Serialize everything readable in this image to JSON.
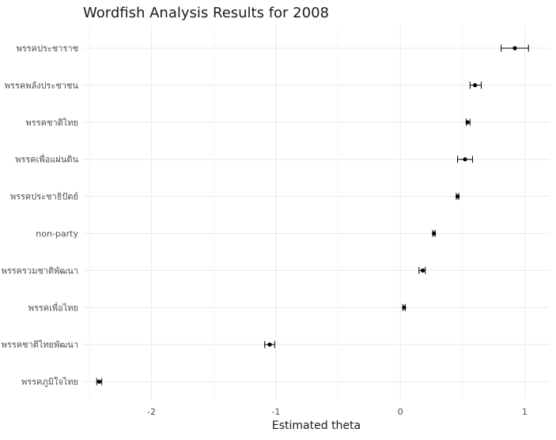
{
  "chart_data": {
    "type": "scatter",
    "title": "Wordfish Analysis Results for 2008",
    "xlabel": "Estimated theta",
    "ylabel": "",
    "xlim": [
      -2.55,
      1.2
    ],
    "x_ticks": [
      -2,
      -1,
      0,
      1
    ],
    "x_tick_labels": [
      "-2",
      "-1",
      "0",
      "1"
    ],
    "grid": true,
    "categories": [
      "พรรคประชาราช",
      "พรรคพลังประชาชน",
      "พรรคชาติไทย",
      "พรรคเพื่อแผ่นดิน",
      "พรรคประชาธิปัตย์",
      "non-party",
      "พรรครวมชาติพัฒนา",
      "พรรคเพื่อไทย",
      "พรรคชาติไทยพัฒนา",
      "พรรคภูมิใจไทย"
    ],
    "values": [
      0.92,
      0.6,
      0.54,
      0.52,
      0.46,
      0.27,
      0.18,
      0.03,
      -1.05,
      -2.42
    ],
    "lower": [
      0.81,
      0.56,
      0.53,
      0.46,
      0.45,
      0.26,
      0.15,
      0.02,
      -1.09,
      -2.44
    ],
    "upper": [
      1.03,
      0.65,
      0.56,
      0.58,
      0.47,
      0.28,
      0.2,
      0.04,
      -1.01,
      -2.4
    ]
  }
}
